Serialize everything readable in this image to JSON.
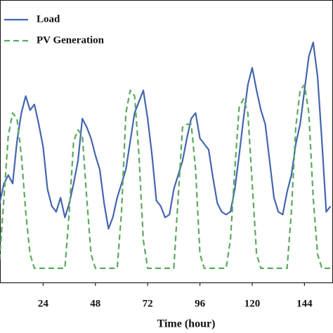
{
  "chart_data": {
    "type": "line",
    "xlabel": "Time (hour)",
    "x": [
      4,
      6,
      8,
      10,
      12,
      14,
      16,
      18,
      20,
      22,
      24,
      26,
      28,
      30,
      32,
      34,
      36,
      38,
      40,
      42,
      44,
      46,
      48,
      50,
      52,
      54,
      56,
      58,
      60,
      62,
      64,
      66,
      68,
      70,
      72,
      74,
      76,
      78,
      80,
      82,
      84,
      86,
      88,
      90,
      92,
      94,
      96,
      98,
      100,
      102,
      104,
      106,
      108,
      110,
      112,
      114,
      116,
      118,
      120,
      122,
      124,
      126,
      128,
      130,
      132,
      134,
      136,
      138,
      140,
      142,
      144,
      146,
      148,
      150,
      152,
      154,
      156
    ],
    "series": [
      {
        "name": "Load",
        "color": "#4466ae",
        "dash": false,
        "values": [
          0.28,
          0.35,
          0.38,
          0.35,
          0.5,
          0.6,
          0.66,
          0.61,
          0.63,
          0.56,
          0.48,
          0.33,
          0.27,
          0.25,
          0.3,
          0.23,
          0.28,
          0.35,
          0.43,
          0.58,
          0.55,
          0.51,
          0.45,
          0.4,
          0.28,
          0.19,
          0.23,
          0.3,
          0.35,
          0.4,
          0.5,
          0.6,
          0.64,
          0.68,
          0.58,
          0.45,
          0.29,
          0.27,
          0.23,
          0.24,
          0.33,
          0.38,
          0.43,
          0.51,
          0.58,
          0.6,
          0.51,
          0.49,
          0.47,
          0.37,
          0.28,
          0.25,
          0.24,
          0.25,
          0.33,
          0.45,
          0.58,
          0.7,
          0.76,
          0.68,
          0.61,
          0.56,
          0.43,
          0.3,
          0.25,
          0.24,
          0.32,
          0.38,
          0.49,
          0.56,
          0.68,
          0.8,
          0.85,
          0.73,
          0.5,
          0.25,
          0.27
        ]
      },
      {
        "name": "PV Generation",
        "color": "#5aaa5e",
        "dash": true,
        "values": [
          0.08,
          0.3,
          0.52,
          0.6,
          0.58,
          0.45,
          0.25,
          0.1,
          0.05,
          0.05,
          0.05,
          0.05,
          0.05,
          0.05,
          0.05,
          0.05,
          0.25,
          0.5,
          0.54,
          0.52,
          0.3,
          0.1,
          0.05,
          0.05,
          0.05,
          0.05,
          0.05,
          0.05,
          0.25,
          0.6,
          0.68,
          0.66,
          0.45,
          0.15,
          0.05,
          0.05,
          0.05,
          0.05,
          0.05,
          0.05,
          0.05,
          0.3,
          0.55,
          0.56,
          0.56,
          0.4,
          0.1,
          0.05,
          0.05,
          0.05,
          0.05,
          0.05,
          0.05,
          0.15,
          0.4,
          0.62,
          0.65,
          0.6,
          0.35,
          0.1,
          0.05,
          0.05,
          0.05,
          0.05,
          0.05,
          0.05,
          0.05,
          0.25,
          0.55,
          0.68,
          0.7,
          0.6,
          0.3,
          0.1,
          0.05,
          0.05,
          0.05
        ]
      }
    ],
    "xlim": [
      4.2,
      157.1
    ],
    "xticks": [
      24,
      48,
      72,
      96,
      120,
      144
    ],
    "ylim": [
      0,
      1
    ],
    "legend": "upper left"
  }
}
